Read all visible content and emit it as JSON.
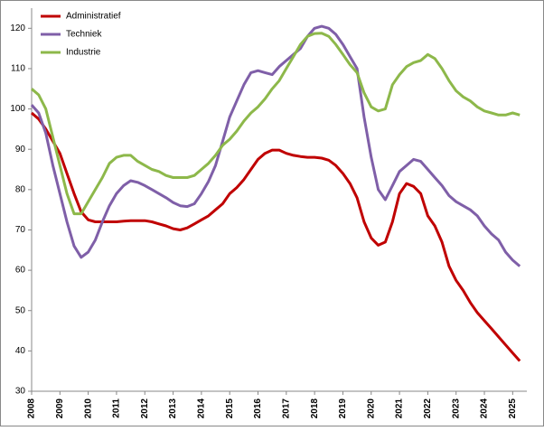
{
  "chart_data": {
    "type": "line",
    "x": [
      2008,
      2008.25,
      2008.5,
      2008.75,
      2009,
      2009.25,
      2009.5,
      2009.75,
      2010,
      2010.25,
      2010.5,
      2010.75,
      2011,
      2011.25,
      2011.5,
      2011.75,
      2012,
      2012.25,
      2012.5,
      2012.75,
      2013,
      2013.25,
      2013.5,
      2013.75,
      2014,
      2014.25,
      2014.5,
      2014.75,
      2015,
      2015.25,
      2015.5,
      2015.75,
      2016,
      2016.25,
      2016.5,
      2016.75,
      2017,
      2017.25,
      2017.5,
      2017.75,
      2018,
      2018.25,
      2018.5,
      2018.75,
      2019,
      2019.25,
      2019.5,
      2019.75,
      2020,
      2020.25,
      2020.5,
      2020.75,
      2021,
      2021.25,
      2021.5,
      2021.75,
      2022,
      2022.25,
      2022.5,
      2022.75,
      2023,
      2023.25,
      2023.5,
      2023.75,
      2024,
      2024.25,
      2024.5,
      2024.75,
      2025,
      2025.25
    ],
    "series": [
      {
        "name": "Administratief",
        "color": "#c00000",
        "values": [
          99,
          97.5,
          95,
          92,
          89,
          84,
          79,
          74.5,
          72.5,
          72,
          72,
          72,
          72,
          72.2,
          72.3,
          72.3,
          72.3,
          72,
          71.5,
          71,
          70.3,
          70,
          70.5,
          71.5,
          72.5,
          73.5,
          75,
          76.5,
          79,
          80.5,
          82.5,
          85,
          87.5,
          89,
          89.8,
          89.8,
          89,
          88.5,
          88.2,
          88,
          88,
          87.8,
          87.3,
          86,
          84,
          81.5,
          78,
          72,
          68,
          66.2,
          67,
          72,
          79,
          81.5,
          80.8,
          79,
          73.5,
          71,
          67,
          61,
          57.5,
          55,
          52,
          49.5,
          47.5,
          45.5,
          43.5,
          41.5,
          39.5,
          37.5
        ]
      },
      {
        "name": "Techniek",
        "color": "#7f5fa8",
        "values": [
          101,
          99,
          94,
          86,
          79,
          72,
          66,
          63.2,
          64.5,
          67.5,
          72,
          76,
          79,
          81,
          82.2,
          81.8,
          81,
          80,
          79,
          78,
          76.8,
          76,
          75.8,
          76.5,
          79,
          82,
          86,
          92,
          98,
          102,
          106,
          109,
          109.5,
          109,
          108.5,
          110.5,
          112,
          113.5,
          115,
          118,
          120,
          120.5,
          120,
          118.5,
          116,
          113,
          110,
          98,
          88,
          80,
          77.5,
          81,
          84.5,
          86,
          87.5,
          87,
          85,
          83,
          81,
          78.5,
          77,
          76,
          75,
          73.5,
          71,
          69,
          67.5,
          64.5,
          62.5,
          61
        ]
      },
      {
        "name": "Industrie",
        "color": "#8db84a",
        "values": [
          105,
          103.5,
          100,
          93,
          86,
          79,
          74,
          74,
          77,
          80,
          83,
          86.5,
          88,
          88.5,
          88.5,
          87,
          86,
          85,
          84.5,
          83.5,
          83,
          83,
          83,
          83.5,
          85,
          86.5,
          88.5,
          91,
          92.5,
          94.5,
          97,
          99,
          100.5,
          102.5,
          105,
          107,
          110,
          113,
          116,
          118,
          118.7,
          118.8,
          118,
          116,
          113.5,
          111,
          109,
          104,
          100.5,
          99.5,
          100,
          106,
          108.5,
          110.5,
          111.5,
          112,
          113.5,
          112.5,
          110,
          107,
          104.5,
          103,
          102,
          100.5,
          99.5,
          99,
          98.5,
          98.5,
          99,
          98.5
        ]
      }
    ],
    "xlim": [
      2008,
      2025.5
    ],
    "xticks": [
      2008,
      2009,
      2010,
      2011,
      2012,
      2013,
      2014,
      2015,
      2016,
      2017,
      2018,
      2019,
      2020,
      2021,
      2022,
      2023,
      2024,
      2025
    ],
    "ylim": [
      30,
      125
    ],
    "yticks": [
      30,
      40,
      50,
      60,
      70,
      80,
      90,
      100,
      110,
      120
    ],
    "legend": "upper left",
    "grid": false
  }
}
